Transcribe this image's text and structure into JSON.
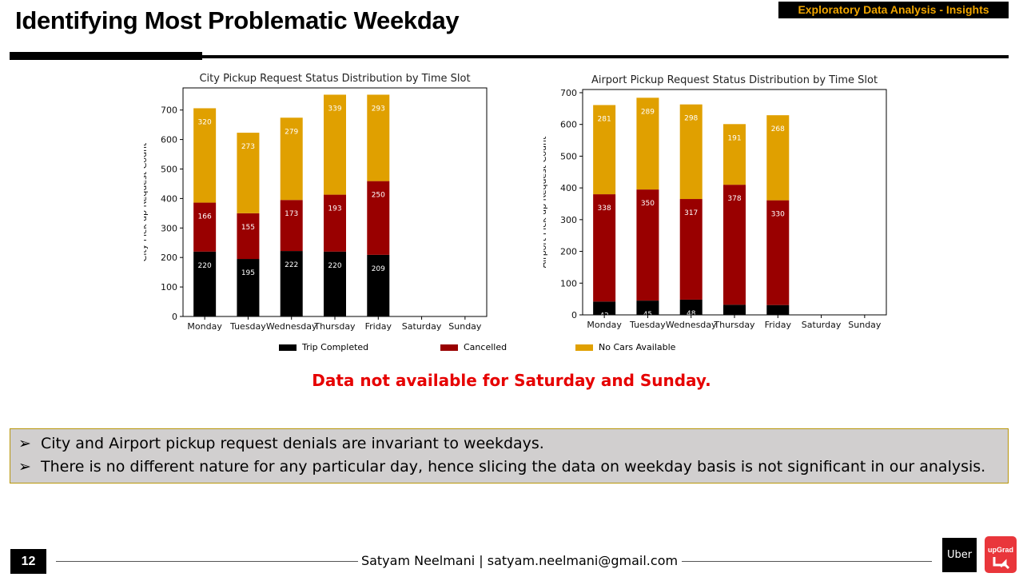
{
  "slide": {
    "title": "Identifying Most Problematic Weekday",
    "section_tag": "Exploratory Data Analysis - Insights",
    "note": "Data not available for Saturday and Sunday.",
    "insights": [
      "City and Airport pickup request denials are invariant to weekdays.",
      "There is no different nature for any particular day, hence slicing the data on weekday basis is not significant in our analysis."
    ],
    "page_number": "12",
    "footer": "Satyam Neelmani | satyam.neelmani@gmail.com",
    "logo_uber": "Uber",
    "logo_upgrad": "upGrad"
  },
  "colors": {
    "trip_completed": "#000000",
    "cancelled": "#990000",
    "no_cars": "#e0a000",
    "note": "#e60000",
    "insight_bg": "#d1cfcf",
    "tag_text": "#f0a500",
    "upgrad_red": "#e9363b"
  },
  "legend": [
    "Trip Completed",
    "Cancelled",
    "No Cars Available"
  ],
  "chart_data": [
    {
      "type": "bar",
      "stacked": true,
      "title": "City Pickup Request Status Distribution by Time Slot",
      "xlabel": "",
      "ylabel": "City Pick up Request Count",
      "categories": [
        "Monday",
        "Tuesday",
        "Wednesday",
        "Thursday",
        "Friday",
        "Saturday",
        "Sunday"
      ],
      "ylim": [
        0,
        775
      ],
      "yticks": [
        0,
        100,
        200,
        300,
        400,
        500,
        600,
        700
      ],
      "series": [
        {
          "name": "Trip Completed",
          "values": [
            220,
            195,
            222,
            220,
            209,
            0,
            0
          ]
        },
        {
          "name": "Cancelled",
          "values": [
            166,
            155,
            173,
            193,
            250,
            0,
            0
          ]
        },
        {
          "name": "No Cars Available",
          "values": [
            320,
            273,
            279,
            339,
            293,
            0,
            0
          ]
        }
      ]
    },
    {
      "type": "bar",
      "stacked": true,
      "title": "Airport Pickup Request Status Distribution by Time Slot",
      "xlabel": "",
      "ylabel": "Airport Pick up Request Count",
      "categories": [
        "Monday",
        "Tuesday",
        "Wednesday",
        "Thursday",
        "Friday",
        "Saturday",
        "Sunday"
      ],
      "ylim": [
        0,
        710
      ],
      "yticks": [
        0,
        100,
        200,
        300,
        400,
        500,
        600,
        700
      ],
      "series": [
        {
          "name": "Trip Completed",
          "values": [
            42,
            45,
            48,
            32,
            31,
            0,
            0
          ]
        },
        {
          "name": "Cancelled",
          "values": [
            338,
            350,
            317,
            378,
            330,
            0,
            0
          ]
        },
        {
          "name": "No Cars Available",
          "values": [
            281,
            289,
            298,
            191,
            268,
            0,
            0
          ]
        }
      ]
    }
  ]
}
